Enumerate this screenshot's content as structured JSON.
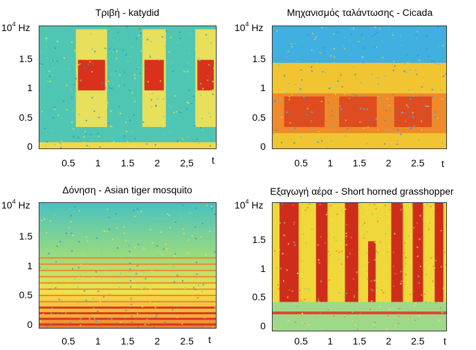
{
  "chart_data": [
    {
      "type": "heatmap",
      "title": "Τριβή - katydid",
      "y_unit_base": "10",
      "y_unit_exp": "4",
      "y_unit_suffix": "Hz",
      "xlabel": "t",
      "xticks": [
        "0.5",
        "1",
        "1.5",
        "2",
        "2,5"
      ],
      "xtick_values": [
        0.5,
        1.0,
        1.5,
        2.0,
        2.5
      ],
      "yticks": [
        "1.5",
        "1",
        "0.5",
        "0"
      ],
      "ytick_values": [
        1.5,
        1.0,
        0.5,
        0.0
      ],
      "xlim": [
        0,
        3.0
      ],
      "ylim": [
        0,
        2.0
      ],
      "background": "#4fc6b3",
      "bursts": [
        {
          "t0": 0.62,
          "t1": 1.15,
          "f0": 0.35,
          "f1": 1.95,
          "core_f0": 0.95,
          "core_f1": 1.45
        },
        {
          "t0": 1.75,
          "t1": 2.15,
          "f0": 0.35,
          "f1": 1.95,
          "core_f0": 0.95,
          "core_f1": 1.45
        },
        {
          "t0": 2.65,
          "t1": 3.0,
          "f0": 0.35,
          "f1": 1.95,
          "core_f0": 0.95,
          "core_f1": 1.45
        }
      ]
    },
    {
      "type": "heatmap",
      "title": "Μηχανισμός ταλάντωσης - Cicada",
      "y_unit_base": "10",
      "y_unit_exp": "4",
      "y_unit_suffix": "Hz",
      "xlabel": "t",
      "xticks": [
        "0.5",
        "1",
        "1.5",
        "2",
        "2.5"
      ],
      "xtick_values": [
        0.5,
        1.0,
        1.5,
        2.0,
        2.5
      ],
      "yticks": [
        "1.5",
        "1",
        "0.5",
        "0"
      ],
      "ytick_values": [
        1.5,
        1.0,
        0.5,
        0.0
      ],
      "xlim": [
        0,
        3.0
      ],
      "ylim": [
        0,
        2.0
      ],
      "background": "#3fb0e0",
      "energy_top": 1.4,
      "bursts": [
        {
          "t0": 0.2,
          "t1": 0.9,
          "f0": 0.35,
          "f1": 0.85,
          "core_f0": 0.35,
          "core_f1": 0.85
        },
        {
          "t0": 1.15,
          "t1": 1.8,
          "f0": 0.35,
          "f1": 0.85,
          "core_f0": 0.35,
          "core_f1": 0.85
        },
        {
          "t0": 2.1,
          "t1": 2.75,
          "f0": 0.35,
          "f1": 0.85,
          "core_f0": 0.35,
          "core_f1": 0.85
        }
      ]
    },
    {
      "type": "heatmap",
      "title": "Δόνηση - Asian tiger mosquito",
      "y_unit_base": "10",
      "y_unit_exp": "4",
      "y_unit_suffix": "Hz",
      "xlabel": "t",
      "xticks": [
        "0.5",
        "1",
        "1.5",
        "2",
        "2.5"
      ],
      "xtick_values": [
        0.5,
        1.0,
        1.5,
        2.0,
        2.5
      ],
      "yticks": [
        "1.5",
        "1",
        "0.5",
        "0"
      ],
      "ytick_values": [
        1.5,
        1.0,
        0.5,
        0.0
      ],
      "xlim": [
        0,
        3.0
      ],
      "ylim": [
        0,
        2.0
      ],
      "background": "#4fc6b3",
      "harmonics_hz": [
        0.06,
        0.15,
        0.24,
        0.33,
        0.42,
        0.52,
        0.62,
        0.72,
        0.82,
        0.92,
        1.02,
        1.12
      ]
    },
    {
      "type": "heatmap",
      "title": "Εξαγωγή αέρα - Short horned grasshopper",
      "y_unit_base": "10",
      "y_unit_exp": "4",
      "y_unit_suffix": "Hz",
      "xlabel": "t",
      "xticks": [
        "0.5",
        "1",
        "1.5",
        "2",
        "2.5"
      ],
      "xtick_values": [
        0.5,
        1.0,
        1.5,
        2.0,
        2.5
      ],
      "yticks": [
        "1.5",
        "1",
        "0.5",
        "0"
      ],
      "ytick_values": [
        1.5,
        1.0,
        0.5,
        0.0
      ],
      "xlim": [
        0,
        3.0
      ],
      "ylim": [
        0,
        2.0
      ],
      "background": "#f0d83a",
      "bursts": [
        {
          "t0": 0.12,
          "t1": 0.45,
          "f0": 0.45,
          "f1": 2.0
        },
        {
          "t0": 0.75,
          "t1": 0.95,
          "f0": 0.45,
          "f1": 2.0
        },
        {
          "t0": 1.25,
          "t1": 1.48,
          "f0": 0.45,
          "f1": 2.0
        },
        {
          "t0": 1.65,
          "t1": 1.78,
          "f0": 0.45,
          "f1": 1.4
        },
        {
          "t0": 2.05,
          "t1": 2.25,
          "f0": 0.45,
          "f1": 2.0
        },
        {
          "t0": 2.42,
          "t1": 2.6,
          "f0": 0.45,
          "f1": 2.0
        },
        {
          "t0": 2.8,
          "t1": 2.95,
          "f0": 0.45,
          "f1": 2.0
        }
      ]
    }
  ]
}
